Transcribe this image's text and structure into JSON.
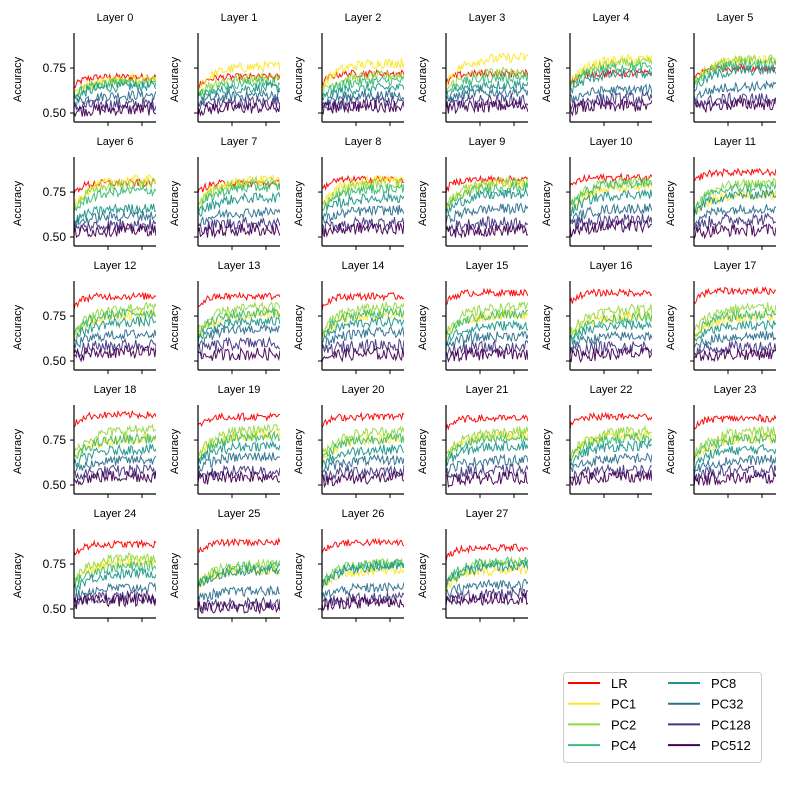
{
  "chart_data": {
    "type": "line",
    "ylabel": "Accuracy",
    "yticks": [
      "0.50",
      "0.75"
    ],
    "ytick_values": [
      0.5,
      0.75
    ],
    "ylim": [
      0.45,
      0.945
    ],
    "legend_placement": "bottom-right",
    "series_names": [
      "LR",
      "PC1",
      "PC2",
      "PC4",
      "PC8",
      "PC32",
      "PC128",
      "PC512"
    ],
    "series_colors": [
      "#ff0000",
      "#fde725",
      "#95d840",
      "#3cbb75",
      "#1f968b",
      "#2d708e",
      "#453781",
      "#440154"
    ],
    "panels": [
      {
        "title": "Layer 0",
        "final_accuracy": [
          0.7,
          0.69,
          0.68,
          0.67,
          0.65,
          0.6,
          0.55,
          0.52
        ]
      },
      {
        "title": "Layer 1",
        "final_accuracy": [
          0.7,
          0.76,
          0.7,
          0.67,
          0.64,
          0.6,
          0.56,
          0.53
        ]
      },
      {
        "title": "Layer 2",
        "final_accuracy": [
          0.72,
          0.78,
          0.71,
          0.68,
          0.64,
          0.6,
          0.56,
          0.54
        ]
      },
      {
        "title": "Layer 3",
        "final_accuracy": [
          0.72,
          0.81,
          0.73,
          0.7,
          0.66,
          0.62,
          0.57,
          0.54
        ]
      },
      {
        "title": "Layer 4",
        "final_accuracy": [
          0.72,
          0.8,
          0.78,
          0.76,
          0.72,
          0.63,
          0.58,
          0.54
        ]
      },
      {
        "title": "Layer 5",
        "final_accuracy": [
          0.75,
          0.8,
          0.8,
          0.78,
          0.74,
          0.65,
          0.58,
          0.55
        ]
      },
      {
        "title": "Layer 6",
        "final_accuracy": [
          0.8,
          0.82,
          0.8,
          0.76,
          0.66,
          0.62,
          0.57,
          0.54
        ]
      },
      {
        "title": "Layer 7",
        "final_accuracy": [
          0.8,
          0.82,
          0.81,
          0.78,
          0.72,
          0.64,
          0.58,
          0.54
        ]
      },
      {
        "title": "Layer 8",
        "final_accuracy": [
          0.82,
          0.82,
          0.8,
          0.77,
          0.72,
          0.65,
          0.58,
          0.55
        ]
      },
      {
        "title": "Layer 9",
        "final_accuracy": [
          0.82,
          0.8,
          0.81,
          0.78,
          0.74,
          0.66,
          0.58,
          0.54
        ]
      },
      {
        "title": "Layer 10",
        "final_accuracy": [
          0.83,
          0.78,
          0.81,
          0.8,
          0.74,
          0.66,
          0.6,
          0.56
        ]
      },
      {
        "title": "Layer 11",
        "final_accuracy": [
          0.86,
          0.74,
          0.8,
          0.78,
          0.74,
          0.66,
          0.6,
          0.54
        ]
      },
      {
        "title": "Layer 12",
        "final_accuracy": [
          0.86,
          0.76,
          0.8,
          0.77,
          0.72,
          0.65,
          0.59,
          0.55
        ]
      },
      {
        "title": "Layer 13",
        "final_accuracy": [
          0.86,
          0.76,
          0.8,
          0.77,
          0.72,
          0.68,
          0.6,
          0.54
        ]
      },
      {
        "title": "Layer 14",
        "final_accuracy": [
          0.86,
          0.76,
          0.8,
          0.77,
          0.72,
          0.66,
          0.59,
          0.54
        ]
      },
      {
        "title": "Layer 15",
        "final_accuracy": [
          0.88,
          0.76,
          0.8,
          0.76,
          0.7,
          0.64,
          0.58,
          0.54
        ]
      },
      {
        "title": "Layer 16",
        "final_accuracy": [
          0.88,
          0.75,
          0.79,
          0.74,
          0.7,
          0.64,
          0.58,
          0.54
        ]
      },
      {
        "title": "Layer 17",
        "final_accuracy": [
          0.89,
          0.75,
          0.8,
          0.76,
          0.7,
          0.64,
          0.58,
          0.54
        ]
      },
      {
        "title": "Layer 18",
        "final_accuracy": [
          0.89,
          0.76,
          0.81,
          0.76,
          0.7,
          0.64,
          0.58,
          0.55
        ]
      },
      {
        "title": "Layer 19",
        "final_accuracy": [
          0.88,
          0.78,
          0.81,
          0.77,
          0.72,
          0.66,
          0.58,
          0.55
        ]
      },
      {
        "title": "Layer 20",
        "final_accuracy": [
          0.88,
          0.76,
          0.8,
          0.76,
          0.7,
          0.64,
          0.58,
          0.54
        ]
      },
      {
        "title": "Layer 21",
        "final_accuracy": [
          0.87,
          0.78,
          0.8,
          0.76,
          0.72,
          0.64,
          0.58,
          0.54
        ]
      },
      {
        "title": "Layer 22",
        "final_accuracy": [
          0.88,
          0.78,
          0.8,
          0.76,
          0.72,
          0.65,
          0.58,
          0.55
        ]
      },
      {
        "title": "Layer 23",
        "final_accuracy": [
          0.87,
          0.76,
          0.8,
          0.76,
          0.7,
          0.64,
          0.58,
          0.54
        ]
      },
      {
        "title": "Layer 24",
        "final_accuracy": [
          0.86,
          0.76,
          0.79,
          0.74,
          0.7,
          0.62,
          0.57,
          0.55
        ]
      },
      {
        "title": "Layer 25",
        "final_accuracy": [
          0.87,
          0.72,
          0.75,
          0.74,
          0.72,
          0.6,
          0.53,
          0.51
        ]
      },
      {
        "title": "Layer 26",
        "final_accuracy": [
          0.87,
          0.72,
          0.76,
          0.75,
          0.74,
          0.62,
          0.56,
          0.54
        ]
      },
      {
        "title": "Layer 27",
        "final_accuracy": [
          0.84,
          0.72,
          0.76,
          0.77,
          0.74,
          0.64,
          0.58,
          0.56
        ]
      }
    ]
  }
}
